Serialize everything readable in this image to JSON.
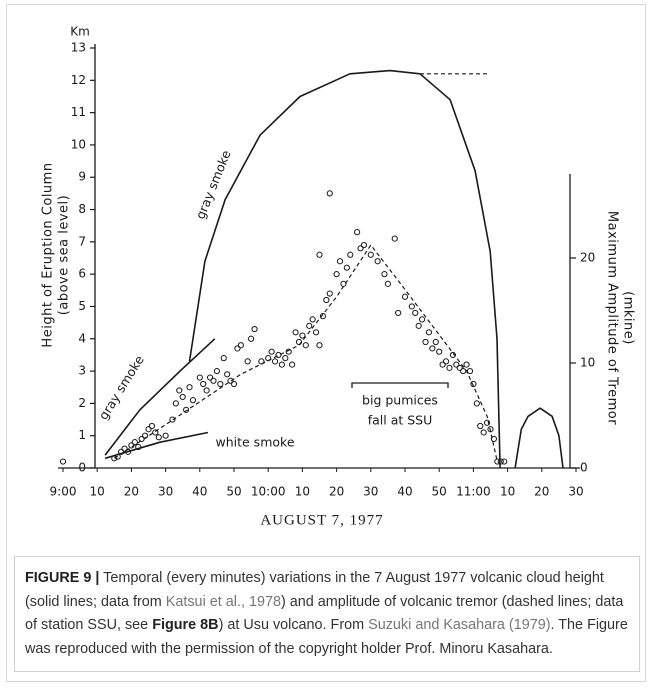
{
  "chart_data": {
    "type": "line",
    "ylabel": "Km",
    "ylabel_lines": [
      "Height of Eruption Column",
      "(above sea level)"
    ],
    "y2label_lines": [
      "Maximum Amplitude of Tremor",
      "(mkine)"
    ],
    "xlabel": "AUGUST 7, 1977",
    "xlim": [
      0,
      150
    ],
    "xticks": [
      {
        "value": 0,
        "label": "9:00"
      },
      10,
      20,
      30,
      40,
      50,
      {
        "value": 60,
        "label": "10:00"
      },
      {
        "value": 70,
        "label": "10"
      },
      {
        "value": 80,
        "label": "20"
      },
      {
        "value": 90,
        "label": "30"
      },
      {
        "value": 100,
        "label": "40"
      },
      {
        "value": 110,
        "label": "50"
      },
      {
        "value": 120,
        "label": "11:00"
      },
      {
        "value": 130,
        "label": "10"
      },
      {
        "value": 140,
        "label": "20"
      },
      {
        "value": 150,
        "label": "30"
      }
    ],
    "ylim": [
      0,
      13
    ],
    "yticks": [
      0,
      1,
      2,
      3,
      4,
      5,
      6,
      7,
      8,
      9,
      10,
      11,
      12,
      13
    ],
    "y2lim": [
      0,
      28
    ],
    "y2ticks": [
      0,
      10,
      20
    ],
    "annotations": [
      "gray smoke",
      "gray smoke",
      "white smoke",
      "big pumices",
      "fall at SSU"
    ],
    "series": [
      {
        "color": "#1a1a1a",
        "line": "solid",
        "x": [
          37,
          41.5,
          47.4,
          57.6,
          69.3,
          83.9,
          95.6,
          104.4,
          113.2,
          120.5,
          124.9,
          126.9,
          127.8
        ],
        "values": [
          3.3,
          6.4,
          8.3,
          10.3,
          11.5,
          12.2,
          12.3,
          12.2,
          11.4,
          9.2,
          6.7,
          4.0,
          0
        ]
      },
      {
        "color": "#1a1a1a",
        "line": "dashed",
        "x": [
          104.4,
          124.3
        ],
        "values": [
          12.2,
          12.2
        ]
      },
      {
        "color": "#1a1a1a",
        "line": "solid",
        "x": [
          12.3,
          22.5,
          34.2,
          44.4
        ],
        "values": [
          0.4,
          1.8,
          3.0,
          4.0
        ]
      },
      {
        "color": "#1a1a1a",
        "line": "solid",
        "x": [
          12.3,
          28.4,
          42.4
        ],
        "values": [
          0.3,
          0.8,
          1.1
        ]
      },
      {
        "color": "#1a1a1a",
        "line": "solid",
        "x": [
          132.2,
          134,
          136,
          139.5,
          143,
          145,
          146.2
        ],
        "values": [
          0,
          1.2,
          1.6,
          1.85,
          1.6,
          1.0,
          0
        ]
      },
      {
        "color": "#1a1a1a",
        "line": "dashed",
        "x": [
          15,
          28,
          52,
          69,
          80,
          90,
          98,
          108,
          118,
          124,
          127
        ],
        "values": [
          0.3,
          1.2,
          2.9,
          3.8,
          5.3,
          6.9,
          5.8,
          4.4,
          3.0,
          1.6,
          0.2
        ]
      },
      {
        "color": "#1a1a1a",
        "marker": "circle",
        "x": [
          0,
          15,
          16,
          17,
          18,
          19,
          20,
          21,
          22,
          23,
          24,
          25,
          26,
          27,
          28,
          30,
          32,
          33,
          34,
          35,
          36,
          37,
          38,
          40,
          41,
          42,
          43,
          44,
          45,
          46,
          47,
          48,
          49,
          50,
          51,
          52,
          54,
          55,
          56,
          58,
          60,
          61,
          62,
          63,
          64,
          65,
          66,
          67,
          68,
          69,
          70,
          71,
          72,
          73,
          74,
          75,
          75,
          76,
          77,
          78,
          78,
          80,
          81,
          82,
          83,
          84,
          86,
          87,
          88,
          90,
          92,
          94,
          95,
          97,
          98,
          100,
          102,
          103,
          104,
          105,
          106,
          107,
          108,
          109,
          110,
          111,
          112,
          113,
          114,
          115,
          116,
          117,
          118,
          119,
          120,
          121,
          122,
          123,
          124,
          125,
          126,
          127,
          128,
          129
        ],
        "values": [
          0.2,
          0.3,
          0.35,
          0.5,
          0.6,
          0.5,
          0.7,
          0.8,
          0.65,
          0.9,
          1.0,
          1.2,
          1.3,
          1.1,
          0.95,
          1.0,
          1.5,
          2.0,
          2.4,
          2.2,
          1.8,
          2.5,
          2.1,
          2.8,
          2.6,
          2.4,
          2.8,
          2.7,
          3.0,
          2.6,
          3.4,
          2.9,
          2.7,
          2.6,
          3.7,
          3.8,
          3.3,
          4.0,
          4.3,
          3.3,
          3.4,
          3.6,
          3.3,
          3.5,
          3.2,
          3.4,
          3.6,
          3.2,
          4.2,
          3.9,
          4.1,
          3.8,
          4.4,
          4.6,
          4.2,
          3.8,
          6.6,
          4.7,
          5.2,
          5.4,
          8.5,
          6.0,
          6.4,
          5.7,
          6.2,
          6.6,
          7.3,
          6.8,
          6.9,
          6.6,
          6.4,
          6.0,
          5.7,
          7.1,
          4.8,
          5.3,
          5.0,
          4.8,
          4.4,
          4.6,
          3.9,
          4.2,
          3.7,
          3.9,
          3.6,
          3.2,
          3.3,
          3.1,
          3.5,
          3.2,
          3.1,
          3.0,
          3.2,
          3.0,
          2.6,
          2.0,
          1.3,
          1.1,
          1.4,
          1.2,
          0.9,
          0.2,
          0.2,
          0.2
        ]
      }
    ]
  },
  "caption": {
    "segments": [
      {
        "text": "FIGURE 9 |",
        "style": "bold"
      },
      {
        "text": " Temporal (every minutes) variations in the 7 August 1977 volcanic cloud height (solid lines; data from ",
        "style": "plain"
      },
      {
        "text": "Katsui et al., 1978",
        "style": "link"
      },
      {
        "text": ") and amplitude of volcanic tremor (dashed lines; data of station SSU, see ",
        "style": "plain"
      },
      {
        "text": "Figure 8B",
        "style": "bold"
      },
      {
        "text": ") at Usu volcano. From ",
        "style": "plain"
      },
      {
        "text": "Suzuki and Kasahara (1979)",
        "style": "link"
      },
      {
        "text": ". The Figure was reproduced with the permission of the copyright holder Prof. Minoru Kasahara.",
        "style": "plain"
      }
    ]
  }
}
